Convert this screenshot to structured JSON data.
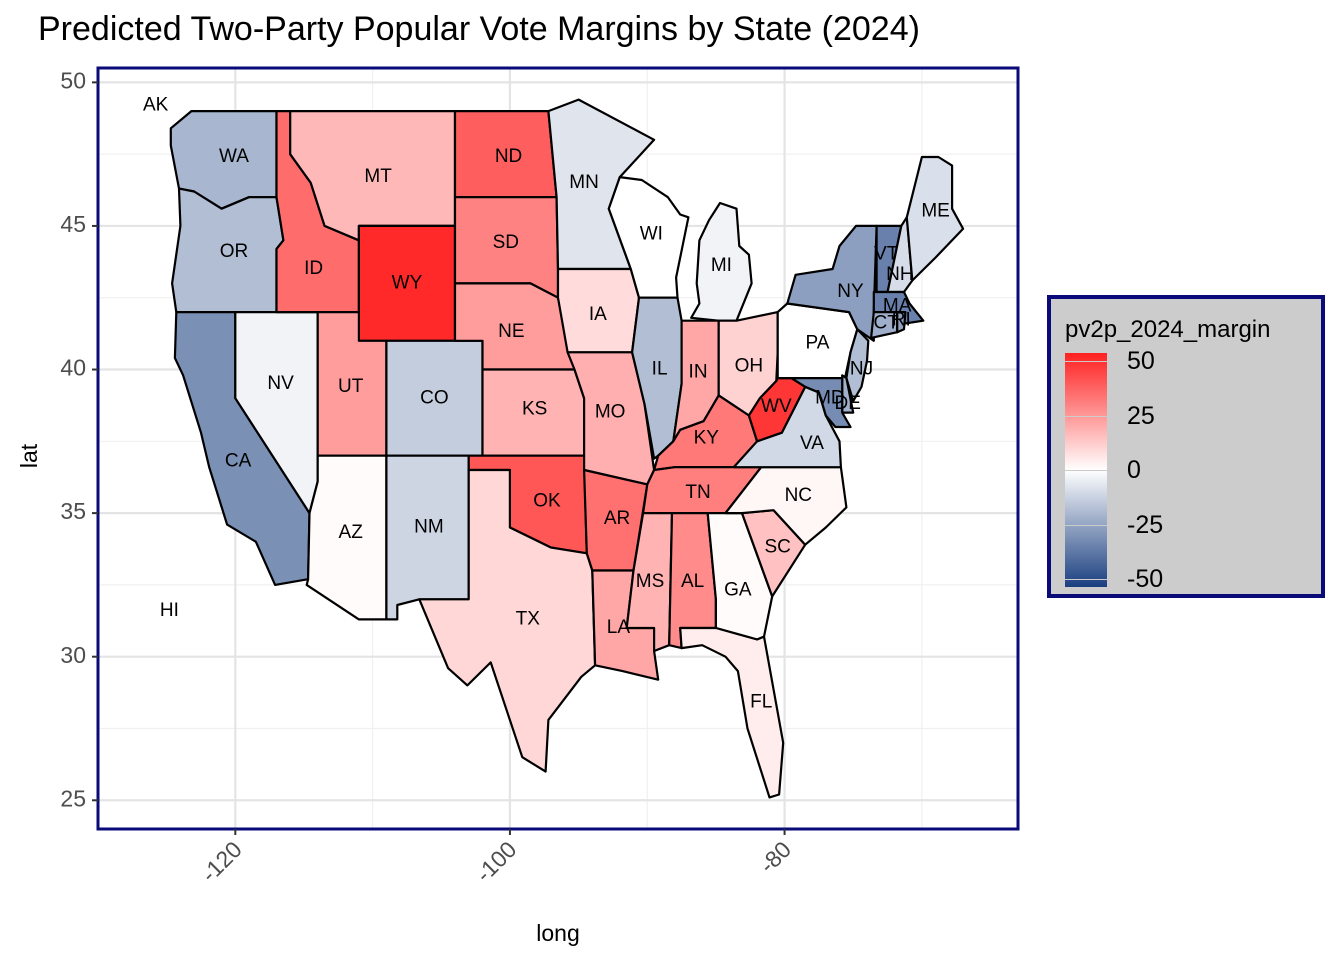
{
  "title": "Predicted Two-Party Popular Vote Margins by State (2024)",
  "colors": {
    "high": "#ff2020",
    "mid": "#ffffff",
    "low": "#1a3f80",
    "panel_border": "#0a0a78",
    "legend_bg": "#cccccc"
  },
  "chart_data": {
    "type": "choropleth",
    "title": "Predicted Two-Party Popular Vote Margins by State (2024)",
    "xlabel": "long",
    "ylabel": "lat",
    "xlim": [
      -130,
      -63
    ],
    "ylim": [
      24,
      50.5
    ],
    "x_ticks": [
      -120,
      -100,
      -80
    ],
    "y_ticks": [
      25,
      30,
      35,
      40,
      45,
      50
    ],
    "grid": true,
    "legend": {
      "title": "pv2p_2024_margin",
      "position": "right",
      "range": [
        -50,
        50
      ],
      "ticks": [
        50,
        25,
        0,
        -25,
        -50
      ]
    },
    "states": [
      {
        "abbr": "WA",
        "margin": -19
      },
      {
        "abbr": "OR",
        "margin": -17
      },
      {
        "abbr": "CA",
        "margin": -29
      },
      {
        "abbr": "NV",
        "margin": -3
      },
      {
        "abbr": "ID",
        "margin": 33
      },
      {
        "abbr": "MT",
        "margin": 16
      },
      {
        "abbr": "WY",
        "margin": 48
      },
      {
        "abbr": "UT",
        "margin": 22
      },
      {
        "abbr": "AZ",
        "margin": 1
      },
      {
        "abbr": "CO",
        "margin": -13
      },
      {
        "abbr": "NM",
        "margin": -11
      },
      {
        "abbr": "ND",
        "margin": 36
      },
      {
        "abbr": "SD",
        "margin": 28
      },
      {
        "abbr": "NE",
        "margin": 22
      },
      {
        "abbr": "KS",
        "margin": 17
      },
      {
        "abbr": "OK",
        "margin": 38
      },
      {
        "abbr": "TX",
        "margin": 9
      },
      {
        "abbr": "MN",
        "margin": -7
      },
      {
        "abbr": "IA",
        "margin": 8
      },
      {
        "abbr": "MO",
        "margin": 18
      },
      {
        "abbr": "AR",
        "margin": 32
      },
      {
        "abbr": "LA",
        "margin": 20
      },
      {
        "abbr": "WI",
        "margin": 0
      },
      {
        "abbr": "IL",
        "margin": -17
      },
      {
        "abbr": "MI",
        "margin": -3
      },
      {
        "abbr": "IN",
        "margin": 20
      },
      {
        "abbr": "OH",
        "margin": 10
      },
      {
        "abbr": "KY",
        "margin": 30
      },
      {
        "abbr": "TN",
        "margin": 29
      },
      {
        "abbr": "MS",
        "margin": 17
      },
      {
        "abbr": "AL",
        "margin": 26
      },
      {
        "abbr": "GA",
        "margin": 1
      },
      {
        "abbr": "FL",
        "margin": 4
      },
      {
        "abbr": "SC",
        "margin": 14
      },
      {
        "abbr": "NC",
        "margin": 2
      },
      {
        "abbr": "VA",
        "margin": -10
      },
      {
        "abbr": "WV",
        "margin": 45
      },
      {
        "abbr": "PA",
        "margin": 0
      },
      {
        "abbr": "NY",
        "margin": -25
      },
      {
        "abbr": "VT",
        "margin": -33
      },
      {
        "abbr": "NH",
        "margin": -9
      },
      {
        "abbr": "ME",
        "margin": -8
      },
      {
        "abbr": "MA",
        "margin": -33
      },
      {
        "abbr": "CT",
        "margin": -21
      },
      {
        "abbr": "RI",
        "margin": -24
      },
      {
        "abbr": "NJ",
        "margin": -17
      },
      {
        "abbr": "DE",
        "margin": -20
      },
      {
        "abbr": "MD",
        "margin": -30
      },
      {
        "abbr": "AK",
        "margin": null
      },
      {
        "abbr": "HI",
        "margin": null
      }
    ]
  }
}
